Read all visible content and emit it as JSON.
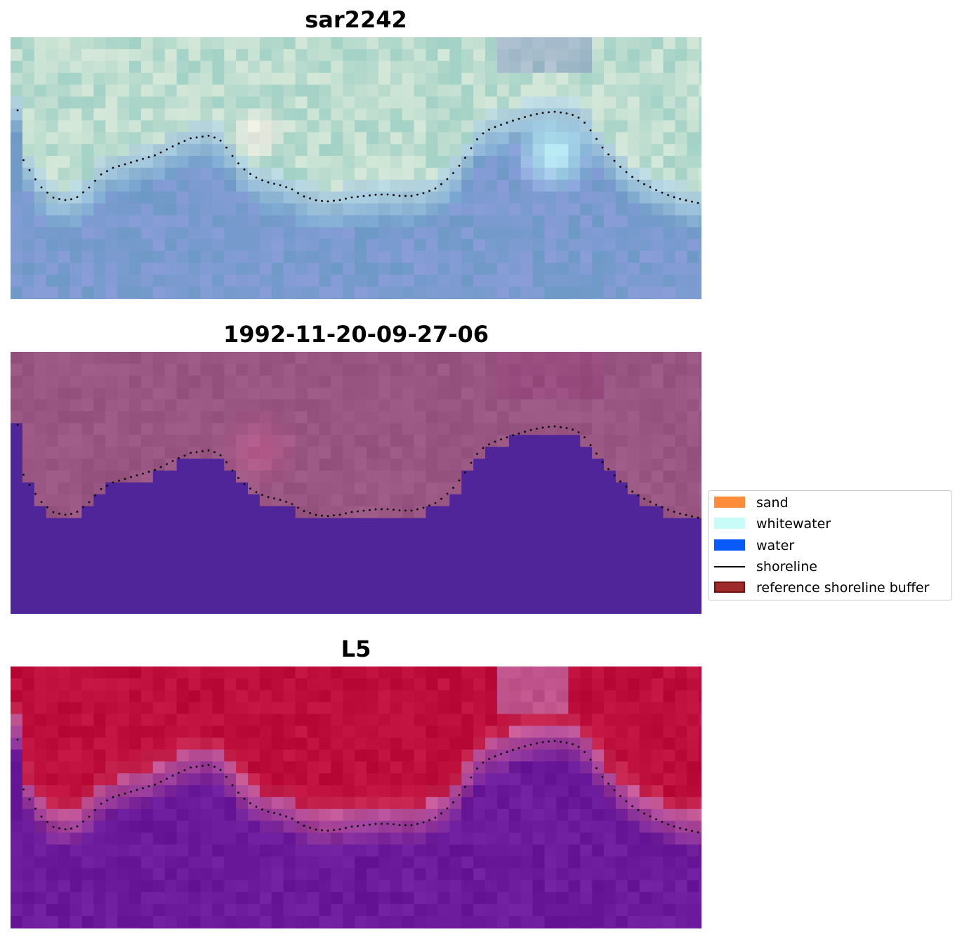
{
  "panels": [
    {
      "title": "sar2242",
      "style": "rgb"
    },
    {
      "title": "1992-11-20-09-27-06",
      "style": "classified"
    },
    {
      "title": "L5",
      "style": "index"
    }
  ],
  "legend": {
    "items": [
      {
        "label": "sand",
        "kind": "patch",
        "color": "#ff8c3a"
      },
      {
        "label": "whitewater",
        "kind": "patch",
        "color": "#c8fcf9"
      },
      {
        "label": "water",
        "kind": "patch",
        "color": "#0a5afa"
      },
      {
        "label": "shoreline",
        "kind": "line",
        "color": "#000000"
      },
      {
        "label": "reference shoreline buffer",
        "kind": "patch",
        "color": "#9e2a2b",
        "edge": "#6e1010"
      }
    ]
  },
  "colors": {
    "shoreline_dots": "#000000",
    "classified_water": "#51259a",
    "classified_land": "#9a5682",
    "index_land": "#be0f3c",
    "index_water": "#6a1a9a"
  }
}
